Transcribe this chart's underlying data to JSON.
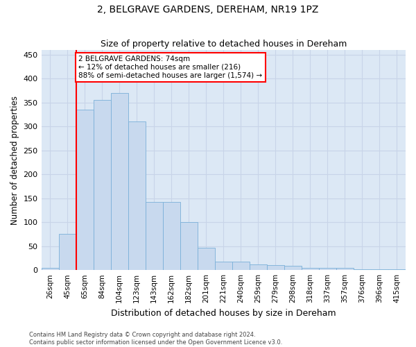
{
  "title": "2, BELGRAVE GARDENS, DEREHAM, NR19 1PZ",
  "subtitle": "Size of property relative to detached houses in Dereham",
  "xlabel": "Distribution of detached houses by size in Dereham",
  "ylabel": "Number of detached properties",
  "categories": [
    "26sqm",
    "45sqm",
    "65sqm",
    "84sqm",
    "104sqm",
    "123sqm",
    "143sqm",
    "162sqm",
    "182sqm",
    "201sqm",
    "221sqm",
    "240sqm",
    "259sqm",
    "279sqm",
    "298sqm",
    "318sqm",
    "337sqm",
    "357sqm",
    "376sqm",
    "396sqm",
    "415sqm"
  ],
  "values": [
    5,
    75,
    335,
    355,
    370,
    310,
    142,
    142,
    100,
    47,
    17,
    17,
    12,
    10,
    9,
    5,
    4,
    4,
    2,
    2,
    1
  ],
  "bar_color": "#c8d9ee",
  "bar_edge_color": "#7ab0d8",
  "grid_color": "#c8d4e8",
  "plot_bg_color": "#dce8f5",
  "fig_bg_color": "#ffffff",
  "vline_x_index": 1.5,
  "vline_color": "red",
  "annotation_text": "2 BELGRAVE GARDENS: 74sqm\n← 12% of detached houses are smaller (216)\n88% of semi-detached houses are larger (1,574) →",
  "annotation_box_facecolor": "white",
  "annotation_box_edgecolor": "red",
  "ylim": [
    0,
    460
  ],
  "yticks": [
    0,
    50,
    100,
    150,
    200,
    250,
    300,
    350,
    400,
    450
  ],
  "footer_line1": "Contains HM Land Registry data © Crown copyright and database right 2024.",
  "footer_line2": "Contains public sector information licensed under the Open Government Licence v3.0."
}
